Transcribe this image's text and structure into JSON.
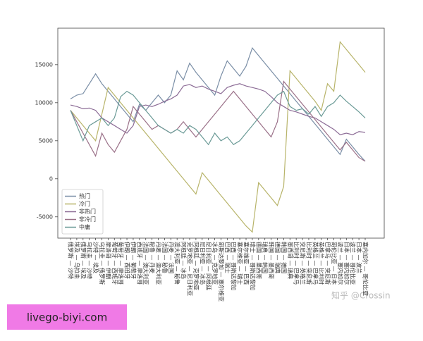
{
  "chart_data": {
    "type": "line",
    "categories": [
      "俄罗斯 — 沙特",
      "埃及 — 乌拉圭",
      "俄罗斯 — 埃及",
      "乌拉圭 — 沙特",
      "沙特 — 埃及",
      "乌拉圭 — 俄罗斯",
      "摩洛哥 — 伊朗",
      "葡萄牙 — 西班牙",
      "葡萄牙 — 摩洛哥",
      "伊朗 — 西班牙",
      "伊朗 — 葡萄牙",
      "西班牙 — 摩洛哥",
      "法国 — 澳大利亚",
      "秘鲁 — 丹麦",
      "丹麦 — 澳大利亚",
      "法国 — 秘鲁",
      "丹麦 — 法国",
      "澳大利亚 — 秘鲁",
      "阿根廷 — 冰岛",
      "克罗地亚 — 尼日利亚",
      "阿根廷 — 克罗地亚",
      "尼日利亚 — 冰岛",
      "尼日利亚 — 阿根廷",
      "冰岛 — 克罗地亚",
      "哥斯达黎加 — 塞尔维亚",
      "巴西 — 瑞士",
      "巴西 — 哥斯达黎加",
      "塞尔维亚 — 瑞士",
      "塞尔维亚 — 巴西",
      "瑞士 — 哥斯达黎加",
      "德国 — 墨西哥",
      "瑞典 — 韩国",
      "韩国 — 墨西哥",
      "德国 — 瑞典",
      "韩国 — 德国",
      "墨西哥 — 瑞典",
      "比利时 — 巴拿马",
      "突尼斯 — 英格兰",
      "比利时 — 突尼斯",
      "英格兰 — 巴拿马",
      "英格兰 — 比利时",
      "巴拿马 — 突尼斯",
      "哥伦比亚 — 日本",
      "波兰 — 塞内加尔",
      "日本 — 塞内加尔",
      "波兰 — 哥伦比亚",
      "日本 — 波兰",
      "塞内加尔 — 哥伦比亚"
    ],
    "series": [
      {
        "name": "热门",
        "color": "#7a8ea6",
        "values": [
          10500,
          11000,
          11200,
          12500,
          13800,
          12500,
          11500,
          10500,
          9500,
          8500,
          7500,
          9800,
          9000,
          10000,
          11000,
          10000,
          11000,
          14200,
          13000,
          15200,
          14000,
          13000,
          12000,
          11000,
          13500,
          15500,
          14500,
          13500,
          14800,
          17200,
          16200,
          15200,
          14200,
          13200,
          12200,
          11200,
          10200,
          9200,
          8200,
          7200,
          6200,
          5200,
          4200,
          3200,
          5200,
          4200,
          3200,
          2300
        ]
      },
      {
        "name": "冷门",
        "color": "#b8b46a",
        "values": [
          9000,
          8000,
          7000,
          6000,
          5000,
          8500,
          12000,
          11000,
          10000,
          9000,
          8000,
          7000,
          6000,
          5000,
          4000,
          3000,
          2000,
          1000,
          0,
          -1000,
          -2000,
          800,
          -200,
          -1200,
          -2200,
          -3200,
          -4200,
          -5200,
          -6200,
          -7000,
          -500,
          -1500,
          -2500,
          -3500,
          -1000,
          14200,
          13200,
          12200,
          11200,
          10200,
          9000,
          12500,
          11500,
          18000,
          17000,
          16000,
          15000,
          14000
        ]
      },
      {
        "name": "非热门",
        "color": "#8c6c96",
        "values": [
          9700,
          9500,
          9200,
          9300,
          9000,
          8000,
          7500,
          7000,
          6500,
          6000,
          7000,
          9500,
          9700,
          9500,
          9800,
          10200,
          10500,
          11000,
          12200,
          12400,
          12000,
          12200,
          11800,
          11500,
          11200,
          12000,
          12300,
          12500,
          12200,
          12000,
          11800,
          11500,
          10800,
          10000,
          9500,
          9000,
          8800,
          8500,
          8200,
          8000,
          7500,
          7000,
          6500,
          5800,
          6000,
          5800,
          6200,
          6100
        ]
      },
      {
        "name": "非冷门",
        "color": "#9a7088",
        "values": [
          9000,
          7500,
          6000,
          4500,
          3000,
          6000,
          4500,
          3500,
          5000,
          6500,
          9500,
          8500,
          7500,
          6500,
          7000,
          6500,
          6000,
          6500,
          7500,
          6500,
          5500,
          6500,
          7500,
          8500,
          9500,
          10500,
          11500,
          10500,
          9500,
          8500,
          7500,
          6500,
          5500,
          7500,
          12800,
          11800,
          10800,
          9800,
          8800,
          7800,
          6800,
          5800,
          4800,
          3800,
          4800,
          3800,
          2800,
          2300
        ]
      },
      {
        "name": "中庸",
        "color": "#6a9a96",
        "values": [
          9000,
          7000,
          5000,
          7000,
          7500,
          8000,
          7000,
          8000,
          10800,
          11500,
          11000,
          10000,
          9000,
          8000,
          7000,
          6500,
          6000,
          6500,
          6000,
          7000,
          6500,
          5500,
          4500,
          6000,
          5000,
          5500,
          4500,
          5000,
          6000,
          7000,
          8000,
          9000,
          10000,
          11000,
          11500,
          9500,
          9000,
          9200,
          8500,
          9500,
          8200,
          9500,
          10000,
          11000,
          10200,
          9500,
          8800,
          8000
        ]
      }
    ],
    "ylim": [
      -7800,
      19800
    ],
    "yticks": [
      -5000,
      0,
      5000,
      10000,
      15000
    ],
    "legend": "lower left"
  },
  "watermark": "知乎 @Crossin",
  "banner": "livego-biyi.com"
}
